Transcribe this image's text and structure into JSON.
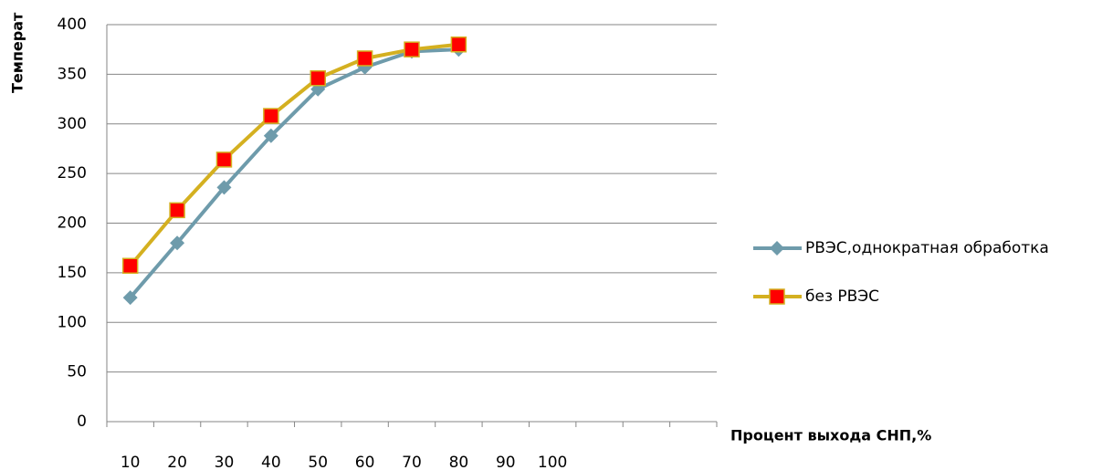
{
  "chart_data": {
    "type": "line",
    "x_label": "Процент выхода СНП,%",
    "y_label": "Температ",
    "categories": [
      "10",
      "20",
      "30",
      "40",
      "50",
      "60",
      "70",
      "80",
      "90",
      "100",
      null,
      null,
      null
    ],
    "series": [
      {
        "name": "РВЭС,однократная обработка",
        "color": "#6e9bab",
        "marker": "diamond",
        "marker_color": "#6e9bab",
        "values": [
          125,
          180,
          236,
          288,
          335,
          357,
          373,
          375,
          null,
          null,
          null,
          null,
          null
        ]
      },
      {
        "name": "без РВЭС",
        "color": "#d4b020",
        "marker": "square",
        "marker_color": "#ff0000",
        "values": [
          157,
          213,
          264,
          308,
          346,
          366,
          375,
          380,
          null,
          null,
          null,
          null,
          null
        ]
      }
    ],
    "ylim": [
      0,
      400
    ],
    "yticks": [
      0,
      50,
      100,
      150,
      200,
      250,
      300,
      350,
      400
    ],
    "grid": true
  }
}
